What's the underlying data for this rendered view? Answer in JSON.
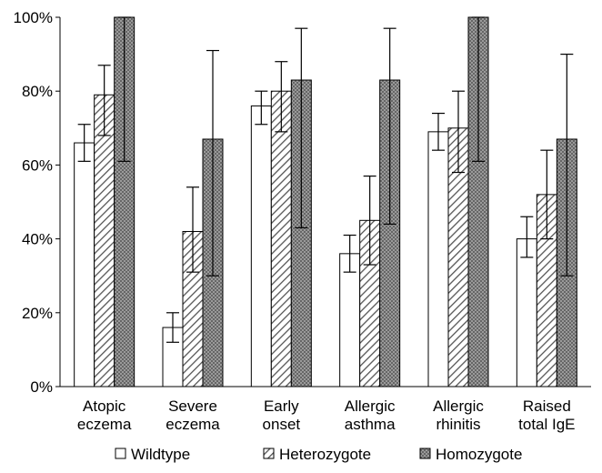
{
  "chart_data": {
    "type": "bar",
    "title": "",
    "xlabel": "",
    "ylabel": "",
    "ylim": [
      0,
      100
    ],
    "y_tick_values": [
      0,
      20,
      40,
      60,
      80,
      100
    ],
    "y_tick_labels": [
      "0%",
      "20%",
      "40%",
      "60%",
      "80%",
      "100%"
    ],
    "categories": [
      [
        "Atopic",
        "eczema"
      ],
      [
        "Severe",
        "eczema"
      ],
      [
        "Early",
        "onset"
      ],
      [
        "Allergic",
        "asthma"
      ],
      [
        "Allergic",
        "rhinitis"
      ],
      [
        "Raised",
        "total IgE"
      ]
    ],
    "series": [
      {
        "name": "Wildtype",
        "pattern": "none",
        "values": [
          66,
          16,
          76,
          36,
          69,
          40
        ],
        "error_low": [
          61,
          12,
          71,
          31,
          64,
          35
        ],
        "error_high": [
          71,
          20,
          80,
          41,
          74,
          46
        ]
      },
      {
        "name": "Heterozygote",
        "pattern": "diagonal-hatch",
        "values": [
          79,
          42,
          80,
          45,
          70,
          52
        ],
        "error_low": [
          68,
          31,
          69,
          33,
          58,
          40
        ],
        "error_high": [
          87,
          54,
          88,
          57,
          80,
          64
        ]
      },
      {
        "name": "Homozygote",
        "pattern": "crosshatch",
        "values": [
          100,
          67,
          83,
          83,
          100,
          67
        ],
        "error_low": [
          61,
          30,
          43,
          44,
          61,
          30
        ],
        "error_high": [
          100,
          91,
          97,
          97,
          100,
          90
        ]
      }
    ],
    "legend_position": "bottom",
    "grid": false,
    "colors": {
      "bar_stroke": "#000000",
      "hatch": "#555555",
      "homozygote_fill": "#8c8c8c",
      "axis": "#000000"
    }
  }
}
